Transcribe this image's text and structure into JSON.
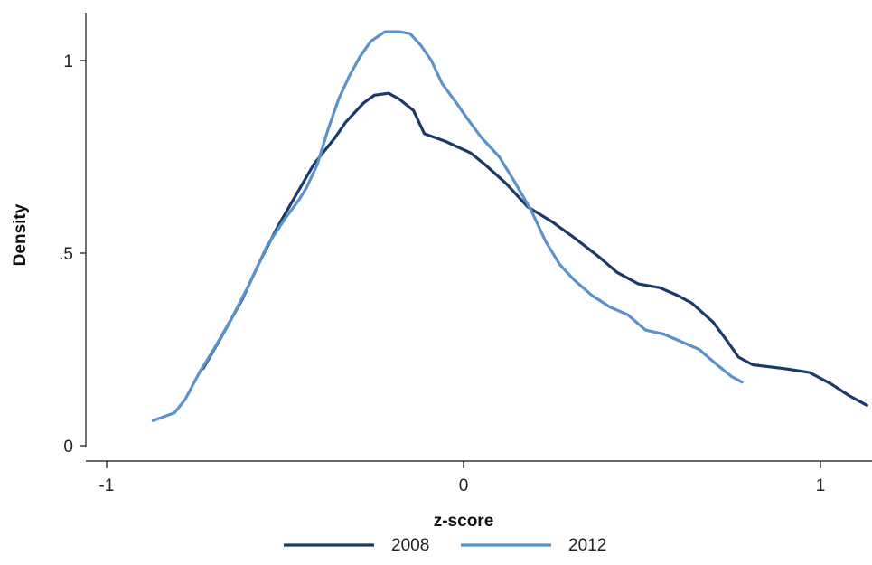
{
  "chart_data": {
    "type": "line",
    "xlabel": "z-score",
    "ylabel": "Density",
    "xlim": [
      -1,
      1.14
    ],
    "ylim": [
      0,
      1.12
    ],
    "x_ticks": [
      {
        "value": -1,
        "label": "-1"
      },
      {
        "value": 0,
        "label": "0"
      },
      {
        "value": 1,
        "label": "1"
      }
    ],
    "y_ticks": [
      {
        "value": 0,
        "label": "0"
      },
      {
        "value": 0.5,
        "label": ".5"
      },
      {
        "value": 1,
        "label": "1"
      }
    ],
    "grid": false,
    "legend_position": "bottom",
    "series": [
      {
        "name": "2008",
        "color": "#1a3a6b",
        "points": [
          [
            -0.73,
            0.2
          ],
          [
            -0.68,
            0.28
          ],
          [
            -0.62,
            0.38
          ],
          [
            -0.57,
            0.48
          ],
          [
            -0.52,
            0.57
          ],
          [
            -0.47,
            0.65
          ],
          [
            -0.42,
            0.73
          ],
          [
            -0.36,
            0.8
          ],
          [
            -0.33,
            0.84
          ],
          [
            -0.28,
            0.89
          ],
          [
            -0.25,
            0.91
          ],
          [
            -0.21,
            0.915
          ],
          [
            -0.18,
            0.9
          ],
          [
            -0.14,
            0.87
          ],
          [
            -0.11,
            0.81
          ],
          [
            -0.05,
            0.79
          ],
          [
            0.02,
            0.76
          ],
          [
            0.06,
            0.73
          ],
          [
            0.12,
            0.68
          ],
          [
            0.18,
            0.62
          ],
          [
            0.25,
            0.58
          ],
          [
            0.31,
            0.54
          ],
          [
            0.38,
            0.49
          ],
          [
            0.43,
            0.45
          ],
          [
            0.49,
            0.42
          ],
          [
            0.55,
            0.41
          ],
          [
            0.6,
            0.39
          ],
          [
            0.64,
            0.37
          ],
          [
            0.7,
            0.32
          ],
          [
            0.74,
            0.27
          ],
          [
            0.77,
            0.23
          ],
          [
            0.81,
            0.21
          ],
          [
            0.9,
            0.2
          ],
          [
            0.97,
            0.19
          ],
          [
            1.03,
            0.16
          ],
          [
            1.08,
            0.13
          ],
          [
            1.13,
            0.105
          ]
        ]
      },
      {
        "name": "2012",
        "color": "#5b92cc",
        "points": [
          [
            -0.87,
            0.065
          ],
          [
            -0.81,
            0.085
          ],
          [
            -0.78,
            0.12
          ],
          [
            -0.74,
            0.19
          ],
          [
            -0.7,
            0.25
          ],
          [
            -0.65,
            0.33
          ],
          [
            -0.6,
            0.42
          ],
          [
            -0.55,
            0.52
          ],
          [
            -0.5,
            0.59
          ],
          [
            -0.46,
            0.64
          ],
          [
            -0.44,
            0.67
          ],
          [
            -0.41,
            0.73
          ],
          [
            -0.38,
            0.82
          ],
          [
            -0.35,
            0.9
          ],
          [
            -0.32,
            0.96
          ],
          [
            -0.29,
            1.01
          ],
          [
            -0.26,
            1.05
          ],
          [
            -0.22,
            1.075
          ],
          [
            -0.18,
            1.075
          ],
          [
            -0.15,
            1.07
          ],
          [
            -0.12,
            1.04
          ],
          [
            -0.09,
            1.0
          ],
          [
            -0.06,
            0.94
          ],
          [
            -0.02,
            0.89
          ],
          [
            0.01,
            0.85
          ],
          [
            0.05,
            0.8
          ],
          [
            0.1,
            0.75
          ],
          [
            0.14,
            0.69
          ],
          [
            0.19,
            0.61
          ],
          [
            0.23,
            0.53
          ],
          [
            0.27,
            0.47
          ],
          [
            0.31,
            0.43
          ],
          [
            0.36,
            0.39
          ],
          [
            0.41,
            0.36
          ],
          [
            0.46,
            0.34
          ],
          [
            0.51,
            0.3
          ],
          [
            0.56,
            0.29
          ],
          [
            0.61,
            0.27
          ],
          [
            0.66,
            0.25
          ],
          [
            0.71,
            0.21
          ],
          [
            0.75,
            0.18
          ],
          [
            0.78,
            0.165
          ]
        ]
      }
    ]
  }
}
